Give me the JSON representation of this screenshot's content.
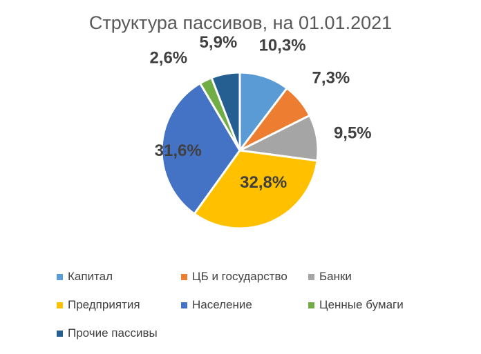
{
  "chart_data": {
    "type": "pie",
    "title": "Структура пассивов, на 01.01.2021",
    "categories": [
      "Капитал",
      "ЦБ и государство",
      "Банки",
      "Предприятия",
      "Население",
      "Ценные бумаги",
      "Прочие пассивы"
    ],
    "values": [
      10.3,
      7.3,
      9.5,
      32.8,
      31.6,
      2.6,
      5.9
    ],
    "labels": [
      "10,3%",
      "7,3%",
      "9,5%",
      "32,8%",
      "31,6%",
      "2,6%",
      "5,9%"
    ],
    "colors": [
      "#5B9BD5",
      "#ED7D31",
      "#A5A5A5",
      "#FFC000",
      "#4472C4",
      "#70AD47",
      "#255E91"
    ],
    "legend_position": "bottom"
  }
}
